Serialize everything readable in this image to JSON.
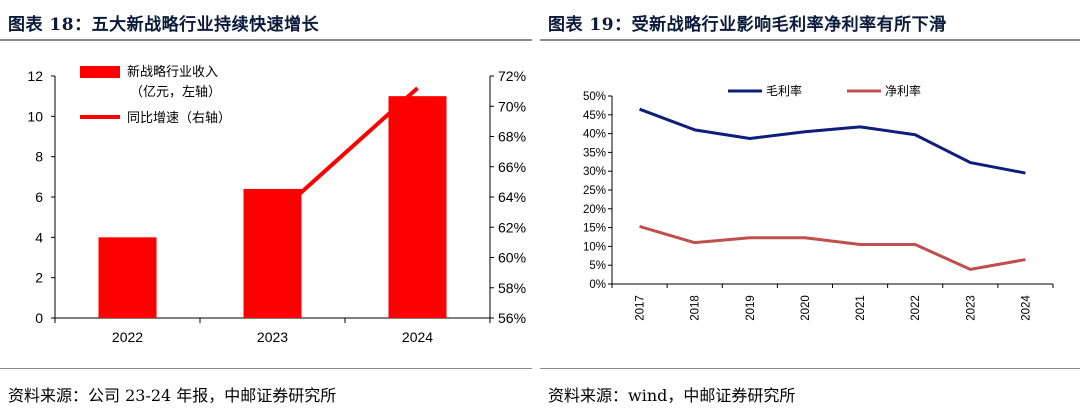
{
  "left": {
    "title": "图表 18：五大新战略行业持续快速增长",
    "source": "资料来源：公司 23-24 年报，中邮证券研究所",
    "chart_data": {
      "type": "bar",
      "categories": [
        "2022",
        "2023",
        "2024"
      ],
      "series": [
        {
          "name": "新战略行业收入",
          "name_line2": "（亿元，左轴）",
          "type": "bar",
          "axis": "left",
          "color": "#ff0000",
          "values": [
            4.0,
            6.4,
            11.0
          ]
        },
        {
          "name": "同比增速（右轴）",
          "type": "line",
          "axis": "right",
          "color": "#ff0000",
          "values": [
            null,
            62.6,
            71.2
          ]
        }
      ],
      "left_axis": {
        "ylim": [
          0,
          12
        ],
        "ticks": [
          "0",
          "2",
          "4",
          "6",
          "8",
          "10",
          "12"
        ]
      },
      "right_axis": {
        "ylim": [
          56,
          72
        ],
        "ticks": [
          "56%",
          "58%",
          "60%",
          "62%",
          "64%",
          "66%",
          "68%",
          "70%",
          "72%"
        ]
      },
      "legend_position": "top-left",
      "grid": false
    }
  },
  "right": {
    "title": "图表 19：受新战略行业影响毛利率净利率有所下滑",
    "source": "资料来源：wind，中邮证券研究所",
    "chart_data": {
      "type": "line",
      "categories": [
        "2017",
        "2018",
        "2019",
        "2020",
        "2021",
        "2022",
        "2023",
        "2024"
      ],
      "series": [
        {
          "name": "毛利率",
          "color": "#0d1f7a",
          "values": [
            46.5,
            41.0,
            38.7,
            40.5,
            41.8,
            39.7,
            32.3,
            29.5
          ]
        },
        {
          "name": "净利率",
          "color": "#c0504d",
          "values": [
            15.3,
            11.0,
            12.3,
            12.3,
            10.5,
            10.5,
            3.9,
            6.5
          ]
        }
      ],
      "ylim": [
        0,
        50
      ],
      "ticks": [
        "0%",
        "5%",
        "10%",
        "15%",
        "20%",
        "25%",
        "30%",
        "35%",
        "40%",
        "45%",
        "50%"
      ],
      "legend_position": "top",
      "grid": false
    }
  }
}
